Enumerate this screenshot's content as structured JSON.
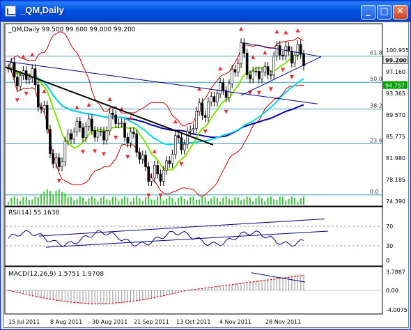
{
  "window": {
    "title": "_QM,Daily"
  },
  "controls": {
    "minimize": "_",
    "maximize": "□",
    "close": "✕"
  },
  "main_panel": {
    "header": "_QM,Daily  99.500 99.600 99.000 99.200",
    "price_ticks": [
      "100.955",
      "97.160",
      "93.365",
      "89.570",
      "85.775",
      "81.980",
      "78.185",
      "74.390"
    ],
    "price_ticks_values": [
      100.955,
      97.16,
      93.365,
      89.57,
      85.775,
      81.98,
      78.185,
      74.39
    ],
    "current_price": "99.200",
    "current_price_value": 99.2,
    "level_label": "94.757",
    "level_value": 94.757,
    "fib_levels": [
      {
        "label": "61.8",
        "value": 99.9
      },
      {
        "label": "50.0",
        "value": 95.3
      },
      {
        "label": "38.2",
        "value": 90.6
      },
      {
        "label": "23.6",
        "value": 84.5
      },
      {
        "label": "0.0",
        "value": 75.5
      }
    ]
  },
  "rsi_panel": {
    "header": "RSI(14) 55.1638",
    "ticks": [
      "70",
      "30",
      "0"
    ],
    "tick_values": [
      70,
      30,
      0
    ]
  },
  "macd_panel": {
    "header": "MACD(12,26,9) 1.5751 1.9708",
    "ticks": [
      "3.7887",
      "0.00",
      "-4.0075"
    ],
    "tick_values": [
      3.7887,
      0,
      -4.0075
    ]
  },
  "x_axis": {
    "labels": [
      "15 Jul 2011",
      "8 Aug 2011",
      "30 Aug 2011",
      "21 Sep 2011",
      "13 Oct 2011",
      "4 Nov 2011",
      "28 Nov 2011"
    ]
  },
  "colors": {
    "ma_fast": "#80e000",
    "ma_mid": "#00d8e8",
    "ma_slow": "#0000a0",
    "bollinger": "#c00000",
    "fractal": "#e03030",
    "fib": "#40a0c0",
    "trendline": "#000080",
    "volume": "#40c040"
  }
}
